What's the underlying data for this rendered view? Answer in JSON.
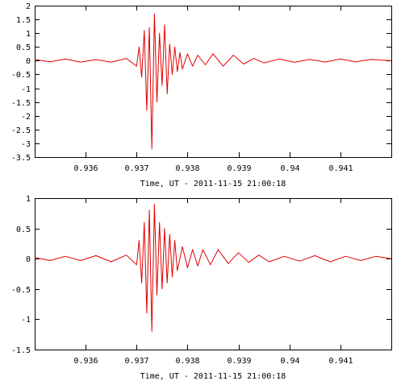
{
  "chart_data": [
    {
      "type": "line",
      "title": "",
      "xlabel": "Time, UT - 2011-11-15 21:00:18",
      "ylabel": "",
      "xlim": [
        0.935,
        0.942
      ],
      "ylim": [
        -3.5,
        2
      ],
      "x_ticks": [
        0.936,
        0.937,
        0.938,
        0.939,
        0.94,
        0.941
      ],
      "x_tick_labels": [
        "0.936",
        "0.937",
        "0.938",
        "0.939",
        "0.94",
        "0.941"
      ],
      "y_ticks": [
        2,
        1.5,
        1,
        0.5,
        0,
        -0.5,
        -1,
        -1.5,
        -2,
        -2.5,
        -3,
        -3.5
      ],
      "y_tick_labels": [
        "2",
        "1.5",
        "1",
        "0.5",
        "0",
        "-0.5",
        "-1",
        "-1.5",
        "-2",
        "-2.5",
        "-3",
        "-3.5"
      ],
      "grid": false,
      "series": [
        {
          "color": "#e00000",
          "x": [
            0.935,
            0.9353,
            0.9356,
            0.9359,
            0.9362,
            0.9365,
            0.9368,
            0.937,
            0.93705,
            0.9371,
            0.93715,
            0.9372,
            0.93725,
            0.9373,
            0.93735,
            0.9374,
            0.93745,
            0.9375,
            0.93755,
            0.9376,
            0.93765,
            0.9377,
            0.93775,
            0.9378,
            0.93785,
            0.9379,
            0.938,
            0.9381,
            0.9382,
            0.93835,
            0.9385,
            0.9387,
            0.9389,
            0.9391,
            0.9393,
            0.9395,
            0.9398,
            0.9401,
            0.9404,
            0.9407,
            0.941,
            0.9413,
            0.9416,
            0.942
          ],
          "y": [
            0.05,
            -0.04,
            0.06,
            -0.05,
            0.04,
            -0.05,
            0.08,
            -0.2,
            0.5,
            -0.6,
            1.1,
            -1.8,
            1.2,
            -3.2,
            1.7,
            -1.5,
            1.0,
            -0.9,
            1.3,
            -1.2,
            0.6,
            -0.5,
            0.5,
            -0.4,
            0.3,
            -0.3,
            0.25,
            -0.2,
            0.2,
            -0.15,
            0.25,
            -0.2,
            0.2,
            -0.12,
            0.08,
            -0.08,
            0.06,
            -0.06,
            0.05,
            -0.05,
            0.06,
            -0.04,
            0.05,
            0.0
          ]
        }
      ]
    },
    {
      "type": "line",
      "title": "",
      "xlabel": "Time, UT - 2011-11-15 21:00:18",
      "ylabel": "",
      "xlim": [
        0.935,
        0.942
      ],
      "ylim": [
        -1.5,
        1
      ],
      "x_ticks": [
        0.936,
        0.937,
        0.938,
        0.939,
        0.94,
        0.941
      ],
      "x_tick_labels": [
        "0.936",
        "0.937",
        "0.938",
        "0.939",
        "0.94",
        "0.941"
      ],
      "y_ticks": [
        1,
        0.5,
        0,
        -0.5,
        -1,
        -1.5
      ],
      "y_tick_labels": [
        "1",
        "0.5",
        "0",
        "-0.5",
        "-1",
        "-1.5"
      ],
      "grid": false,
      "series": [
        {
          "color": "#e00000",
          "x": [
            0.935,
            0.9353,
            0.9356,
            0.9359,
            0.9362,
            0.9365,
            0.9368,
            0.937,
            0.93705,
            0.9371,
            0.93715,
            0.9372,
            0.93725,
            0.9373,
            0.93735,
            0.9374,
            0.93745,
            0.9375,
            0.93755,
            0.9376,
            0.93765,
            0.9377,
            0.93775,
            0.9378,
            0.9379,
            0.938,
            0.9381,
            0.9382,
            0.9383,
            0.93845,
            0.9386,
            0.9388,
            0.939,
            0.9392,
            0.9394,
            0.9396,
            0.9399,
            0.9402,
            0.9405,
            0.9408,
            0.9411,
            0.9414,
            0.9417,
            0.942
          ],
          "y": [
            0.02,
            -0.03,
            0.04,
            -0.03,
            0.05,
            -0.05,
            0.06,
            -0.1,
            0.3,
            -0.4,
            0.6,
            -0.9,
            0.8,
            -1.2,
            0.9,
            -0.6,
            0.6,
            -0.5,
            0.5,
            -0.4,
            0.4,
            -0.3,
            0.3,
            -0.2,
            0.2,
            -0.15,
            0.15,
            -0.12,
            0.15,
            -0.1,
            0.15,
            -0.08,
            0.1,
            -0.06,
            0.06,
            -0.05,
            0.04,
            -0.04,
            0.05,
            -0.05,
            0.04,
            -0.03,
            0.04,
            0.0
          ]
        }
      ]
    }
  ]
}
